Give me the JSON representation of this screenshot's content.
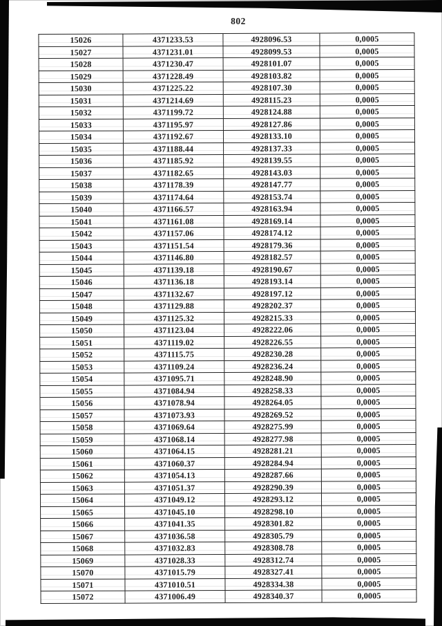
{
  "page": {
    "number": "802"
  },
  "colors": {
    "ink": "#1b1b1b",
    "paper": "#ffffff",
    "scan_artifact": "#070707"
  },
  "table": {
    "rows": [
      [
        "15026",
        "4371233.53",
        "4928096.53",
        "0,0005"
      ],
      [
        "15027",
        "4371231.01",
        "4928099.53",
        "0,0005"
      ],
      [
        "15028",
        "4371230.47",
        "4928101.07",
        "0,0005"
      ],
      [
        "15029",
        "4371228.49",
        "4928103.82",
        "0,0005"
      ],
      [
        "15030",
        "4371225.22",
        "4928107.30",
        "0,0005"
      ],
      [
        "15031",
        "4371214.69",
        "4928115.23",
        "0,0005"
      ],
      [
        "15032",
        "4371199.72",
        "4928124.88",
        "0,0005"
      ],
      [
        "15033",
        "4371195.97",
        "4928127.86",
        "0,0005"
      ],
      [
        "15034",
        "4371192.67",
        "4928133.10",
        "0,0005"
      ],
      [
        "15035",
        "4371188.44",
        "4928137.33",
        "0,0005"
      ],
      [
        "15036",
        "4371185.92",
        "4928139.55",
        "0,0005"
      ],
      [
        "15037",
        "4371182.65",
        "4928143.03",
        "0,0005"
      ],
      [
        "15038",
        "4371178.39",
        "4928147.77",
        "0,0005"
      ],
      [
        "15039",
        "4371174.64",
        "4928153.74",
        "0,0005"
      ],
      [
        "15040",
        "4371166.57",
        "4928163.94",
        "0,0005"
      ],
      [
        "15041",
        "4371161.08",
        "4928169.14",
        "0,0005"
      ],
      [
        "15042",
        "4371157.06",
        "4928174.12",
        "0,0005"
      ],
      [
        "15043",
        "4371151.54",
        "4928179.36",
        "0,0005"
      ],
      [
        "15044",
        "4371146.80",
        "4928182.57",
        "0,0005"
      ],
      [
        "15045",
        "4371139.18",
        "4928190.67",
        "0,0005"
      ],
      [
        "15046",
        "4371136.18",
        "4928193.14",
        "0,0005"
      ],
      [
        "15047",
        "4371132.67",
        "4928197.12",
        "0,0005"
      ],
      [
        "15048",
        "4371129.88",
        "4928202.37",
        "0,0005"
      ],
      [
        "15049",
        "4371125.32",
        "4928215.33",
        "0,0005"
      ],
      [
        "15050",
        "4371123.04",
        "4928222.06",
        "0,0005"
      ],
      [
        "15051",
        "4371119.02",
        "4928226.55",
        "0,0005"
      ],
      [
        "15052",
        "4371115.75",
        "4928230.28",
        "0,0005"
      ],
      [
        "15053",
        "4371109.24",
        "4928236.24",
        "0,0005"
      ],
      [
        "15054",
        "4371095.71",
        "4928248.90",
        "0,0005"
      ],
      [
        "15055",
        "4371084.94",
        "4928258.33",
        "0,0005"
      ],
      [
        "15056",
        "4371078.94",
        "4928264.05",
        "0,0005"
      ],
      [
        "15057",
        "4371073.93",
        "4928269.52",
        "0,0005"
      ],
      [
        "15058",
        "4371069.64",
        "4928275.99",
        "0,0005"
      ],
      [
        "15059",
        "4371068.14",
        "4928277.98",
        "0,0005"
      ],
      [
        "15060",
        "4371064.15",
        "4928281.21",
        "0,0005"
      ],
      [
        "15061",
        "4371060.37",
        "4928284.94",
        "0,0005"
      ],
      [
        "15062",
        "4371054.13",
        "4928287.66",
        "0,0005"
      ],
      [
        "15063",
        "4371051.37",
        "4928290.39",
        "0,0005"
      ],
      [
        "15064",
        "4371049.12",
        "4928293.12",
        "0,0005"
      ],
      [
        "15065",
        "4371045.10",
        "4928298.10",
        "0,0005"
      ],
      [
        "15066",
        "4371041.35",
        "4928301.82",
        "0,0005"
      ],
      [
        "15067",
        "4371036.58",
        "4928305.79",
        "0,0005"
      ],
      [
        "15068",
        "4371032.83",
        "4928308.78",
        "0,0005"
      ],
      [
        "15069",
        "4371028.33",
        "4928312.74",
        "0,0005"
      ],
      [
        "15070",
        "4371015.79",
        "4928327.41",
        "0,0005"
      ],
      [
        "15071",
        "4371010.51",
        "4928334.38",
        "0,0005"
      ],
      [
        "15072",
        "4371006.49",
        "4928340.37",
        "0,0005"
      ]
    ]
  }
}
